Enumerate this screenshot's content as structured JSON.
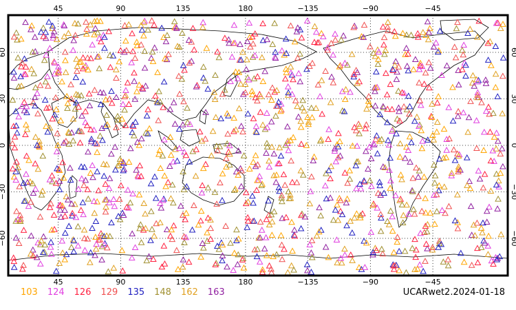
{
  "map": {
    "projection": "equirectangular",
    "lon_center": 180,
    "lon_range": [
      9,
      369
    ],
    "lat_range": [
      -84,
      84
    ],
    "gridlines": "dotted",
    "top_lon_ticks": [
      "45",
      "90",
      "135",
      "180",
      "−135",
      "−90",
      "−45"
    ],
    "bottom_lon_ticks": [
      "45",
      "90",
      "135",
      "180",
      "−135",
      "−90",
      "−45"
    ],
    "lon_tick_values": [
      45,
      90,
      135,
      180,
      225,
      270,
      315
    ],
    "lat_ticks": [
      "60",
      "30",
      "0",
      "−30",
      "−60"
    ],
    "lat_tick_values": [
      60,
      30,
      0,
      -30,
      -60
    ],
    "marker": "triangle-outline"
  },
  "legend": {
    "items": [
      {
        "label": "103",
        "color": "#ffa500"
      },
      {
        "label": "124",
        "color": "#e040e0"
      },
      {
        "label": "126",
        "color": "#ff2040"
      },
      {
        "label": "129",
        "color": "#f05050"
      },
      {
        "label": "135",
        "color": "#2020c0"
      },
      {
        "label": "148",
        "color": "#a09030"
      },
      {
        "label": "162",
        "color": "#e0a020"
      },
      {
        "label": "163",
        "color": "#9020a0"
      }
    ]
  },
  "stamp": "UCARwet2.2024-01-18"
}
